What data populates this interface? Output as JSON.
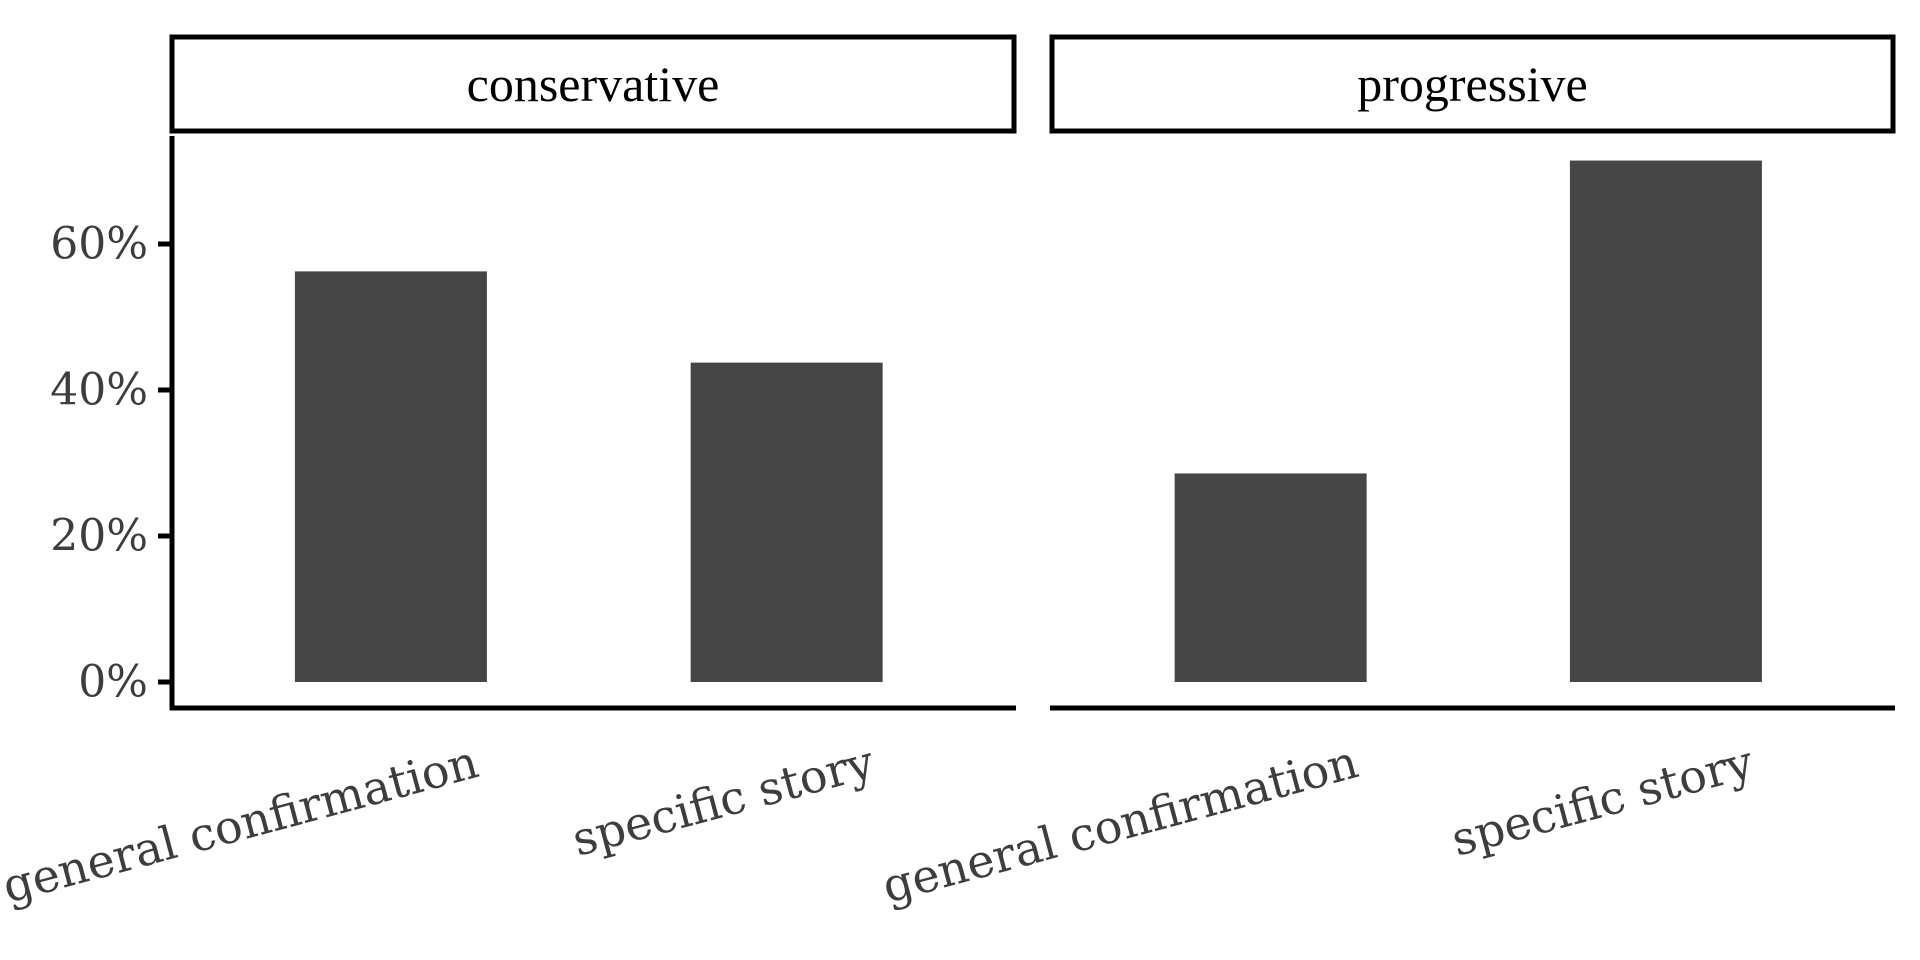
{
  "chart_data": {
    "type": "bar",
    "y_format": "percent",
    "ylim": [
      0,
      0.75
    ],
    "y_ticks": [
      0,
      0.2,
      0.4,
      0.6
    ],
    "y_tick_labels": [
      "0%",
      "20%",
      "40%",
      "60%"
    ],
    "categories": [
      "general confirmation",
      "specific story"
    ],
    "bar_color": "#464646",
    "facets": [
      {
        "label": "conservative",
        "values": [
          0.5625,
          0.4375
        ]
      },
      {
        "label": "progressive",
        "values": [
          0.2857,
          0.7143
        ]
      }
    ],
    "xlabel": "",
    "ylabel": "",
    "grid": false
  }
}
